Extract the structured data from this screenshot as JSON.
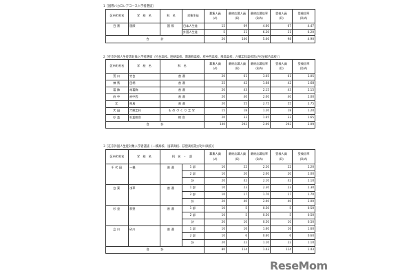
{
  "headers": {
    "district": "区市町村名",
    "school": "学　校　名",
    "dept": "科　名",
    "target": "対象生徒",
    "dept_part": "科　名　・　部",
    "recruit": "募集人員",
    "recruit_sub": "(A)",
    "apply": "最終応募人員",
    "apply_sub": "(B)",
    "apply_rate": "最終応募倍率",
    "apply_rate_sub": "(B/A)",
    "exam": "受検人員",
    "exam_sub": "(D)",
    "exam_rate": "受検倍率",
    "exam_rate_sub": "(D/A)"
  },
  "total_label": "合　　　　計",
  "section1": {
    "title": "1［国際バカロレアコース入学者選抜］",
    "district": "目黒",
    "school": "国際",
    "dept": "国際",
    "rows": [
      [
        "日本人生徒",
        "15",
        "69",
        "4.60",
        "67",
        "4.47"
      ],
      [
        "外国人生徒",
        "5",
        "31",
        "6.20",
        "31",
        "6.20"
      ]
    ],
    "total": [
      "20",
      "100",
      "5.00",
      "98",
      "4.90"
    ]
  },
  "section2": {
    "title": "2［在京外国人生徒等対象入学者選抜（竹台高校、田柄高校、南葛飾高校、府中西高校、飛鳥高校、六郷工科高校及び杉並総合高校）］",
    "rows": [
      [
        "荒川",
        "竹台",
        "普通",
        "20",
        "61",
        "3.05",
        "61",
        "3.05"
      ],
      [
        "練馬",
        "田柄",
        "普通",
        "25",
        "42",
        "1.68",
        "42",
        "1.68"
      ],
      [
        "葛飾",
        "南葛飾",
        "普通",
        "20",
        "43",
        "2.15",
        "43",
        "2.15"
      ],
      [
        "府中",
        "府中西",
        "普通",
        "20",
        "40",
        "2.00",
        "40",
        "2.00"
      ],
      [
        "北",
        "飛鳥",
        "普通",
        "20",
        "55",
        "2.75",
        "55",
        "2.75"
      ],
      [
        "大田",
        "六郷工科",
        "ものづくり工学",
        "15",
        "18",
        "1.20",
        "18",
        "1.20"
      ],
      [
        "杉並",
        "杉並総合",
        "総合",
        "20",
        "33",
        "1.65",
        "33",
        "1.65"
      ]
    ],
    "total": [
      "140",
      "292",
      "2.09",
      "292",
      "2.09"
    ]
  },
  "section3": {
    "title": "3［在京外国人生徒対象入学者選抜（一橋高校、浅草高校、荻窪高校及び砂川高校）］",
    "groups": [
      {
        "district": "千代田",
        "school": "一橋",
        "dept": "普通",
        "rows": [
          [
            "1部",
            "10",
            "22",
            "2.20",
            "22",
            "2.20"
          ],
          [
            "2部",
            "10",
            "20",
            "2.00",
            "20",
            "2.00"
          ],
          [
            "計",
            "20",
            "42",
            "2.10",
            "42",
            "2.10"
          ]
        ]
      },
      {
        "district": "台東",
        "school": "浅草",
        "dept": "普通",
        "rows": [
          [
            "1部",
            "10",
            "23",
            "2.30",
            "23",
            "2.30"
          ],
          [
            "2部",
            "10",
            "17",
            "1.70",
            "17",
            "1.70"
          ],
          [
            "計",
            "20",
            "40",
            "2.00",
            "40",
            "2.00"
          ]
        ]
      },
      {
        "district": "杉並",
        "school": "荻窪",
        "dept": "普通",
        "rows": [
          [
            "1部",
            "10",
            "5",
            "0.50",
            "5",
            "0.50"
          ],
          [
            "2部",
            "10",
            "5",
            "0.50",
            "5",
            "0.50"
          ],
          [
            "計",
            "20",
            "10",
            "0.50",
            "10",
            "0.50"
          ]
        ]
      },
      {
        "district": "立川",
        "school": "砂川",
        "dept": "普通",
        "rows": [
          [
            "1部",
            "10",
            "16",
            "1.60",
            "16",
            "1.60"
          ],
          [
            "2部",
            "10",
            "6",
            "0.60",
            "6",
            "0.60"
          ],
          [
            "計",
            "20",
            "22",
            "1.10",
            "22",
            "1.10"
          ]
        ]
      }
    ],
    "total": [
      "80",
      "114",
      "1.43",
      "114",
      "1.43"
    ]
  },
  "logo": "ReseMom"
}
